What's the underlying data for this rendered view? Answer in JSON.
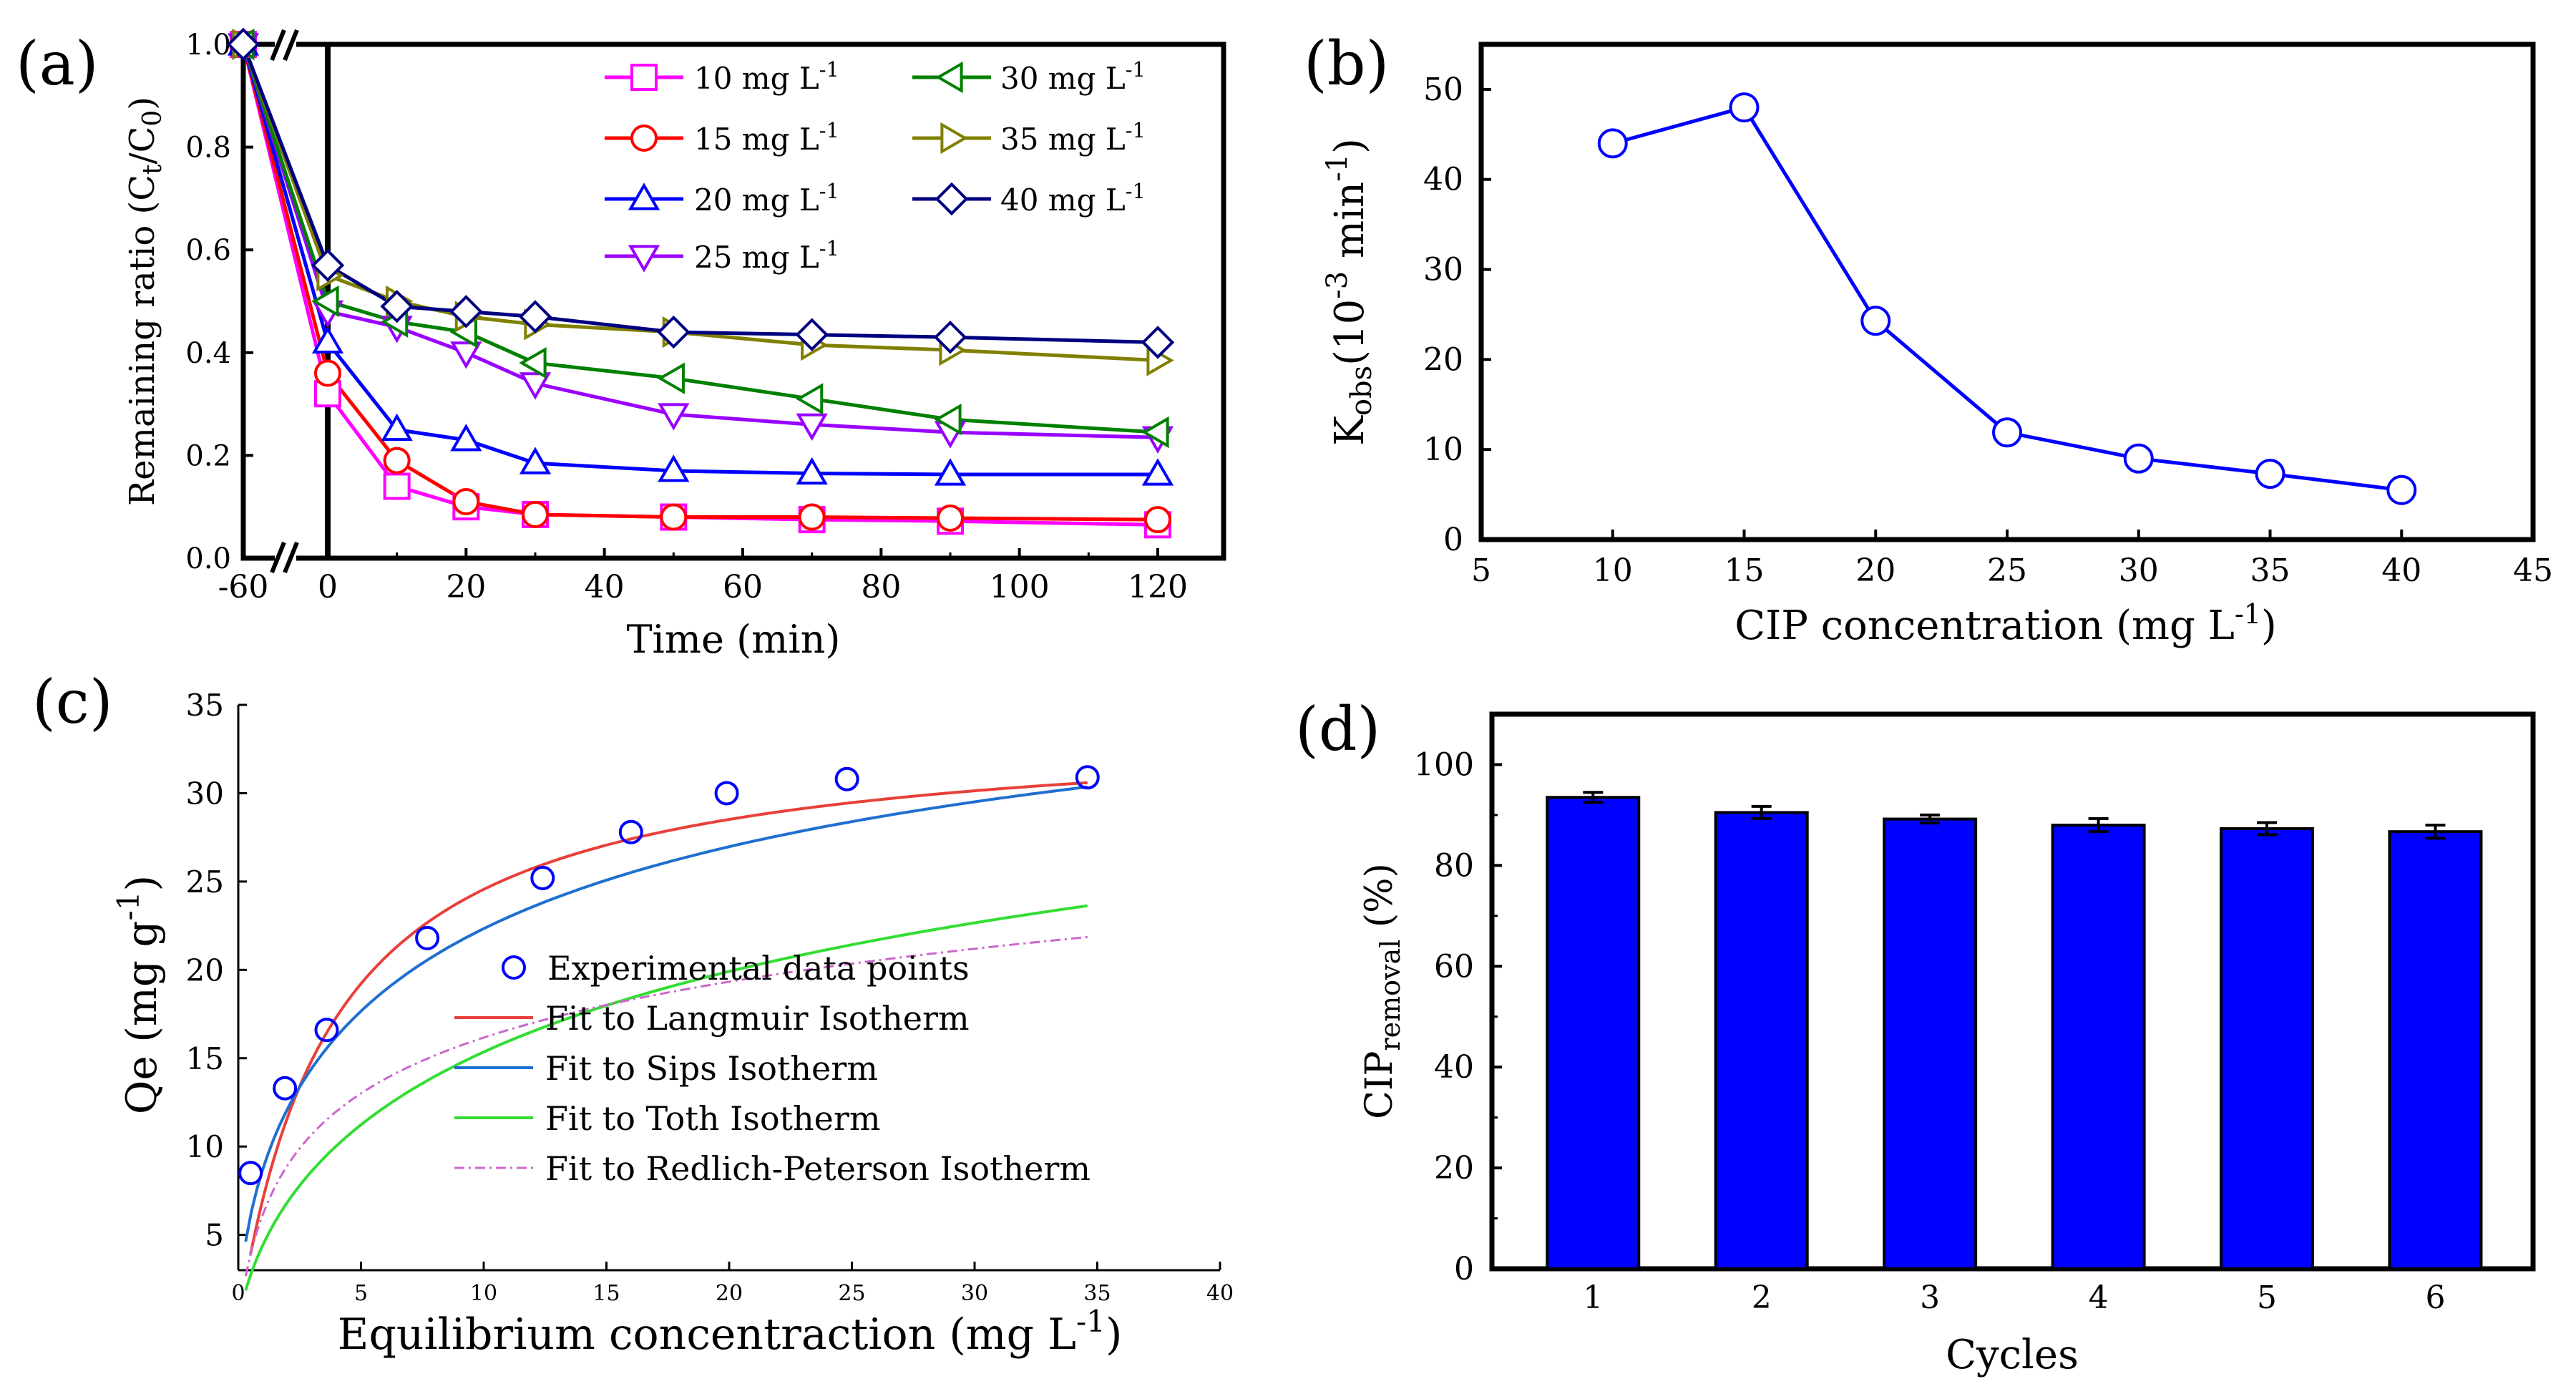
{
  "chart_data": [
    {
      "panel_label": "(a)",
      "type": "line",
      "xlabel": "Time (min)",
      "ylabel": {
        "prefix": "Remaining ratio (C",
        "sub1": "t",
        "mid": "/C",
        "sub2": "0",
        "suffix": ")"
      },
      "xlim": [
        -60,
        120
      ],
      "ylim": [
        0.0,
        1.0
      ],
      "x_break": true,
      "x_ticks": [
        -60,
        0,
        20,
        40,
        60,
        80,
        100,
        120
      ],
      "x_tick_labels": [
        "-60",
        "0",
        "20",
        "40",
        "60",
        "80",
        "100",
        "120"
      ],
      "y_ticks": [
        0.0,
        0.2,
        0.4,
        0.6,
        0.8,
        1.0
      ],
      "y_tick_labels": [
        "0.0",
        "0.2",
        "0.4",
        "0.6",
        "0.8",
        "1.0"
      ],
      "x": [
        -60,
        0,
        10,
        20,
        30,
        50,
        70,
        90,
        120
      ],
      "series": [
        {
          "name": "10 mg L",
          "unit_sup": "-1",
          "marker": "square",
          "color": "#ff00ff",
          "values": [
            1.0,
            0.32,
            0.14,
            0.1,
            0.085,
            0.08,
            0.075,
            0.072,
            0.065
          ]
        },
        {
          "name": "15 mg L",
          "unit_sup": "-1",
          "marker": "circle",
          "color": "#ff0000",
          "values": [
            1.0,
            0.36,
            0.19,
            0.11,
            0.085,
            0.08,
            0.08,
            0.078,
            0.075
          ]
        },
        {
          "name": "20 mg L",
          "unit_sup": "-1",
          "marker": "triangle-up",
          "color": "#0000ff",
          "values": [
            1.0,
            0.42,
            0.25,
            0.23,
            0.185,
            0.17,
            0.165,
            0.163,
            0.163
          ]
        },
        {
          "name": "25 mg L",
          "unit_sup": "-1",
          "marker": "triangle-down",
          "color": "#9900ff",
          "values": [
            1.0,
            0.48,
            0.45,
            0.4,
            0.34,
            0.28,
            0.26,
            0.245,
            0.235
          ]
        },
        {
          "name": "30 mg L",
          "unit_sup": "-1",
          "marker": "triangle-left",
          "color": "#008000",
          "values": [
            1.0,
            0.5,
            0.46,
            0.44,
            0.38,
            0.35,
            0.31,
            0.27,
            0.245
          ]
        },
        {
          "name": "35 mg L",
          "unit_sup": "-1",
          "marker": "triangle-right",
          "color": "#808000",
          "values": [
            1.0,
            0.55,
            0.5,
            0.47,
            0.455,
            0.44,
            0.415,
            0.405,
            0.385
          ]
        },
        {
          "name": "40 mg L",
          "unit_sup": "-1",
          "marker": "diamond",
          "color": "#000080",
          "values": [
            1.0,
            0.57,
            0.49,
            0.48,
            0.47,
            0.44,
            0.435,
            0.43,
            0.42
          ]
        }
      ]
    },
    {
      "panel_label": "(b)",
      "type": "line",
      "xlabel": {
        "text": "CIP concentration (mg L",
        "sup": "-1",
        "suffix": ")"
      },
      "ylabel": {
        "text": "K",
        "sub": "obs",
        "mid": "(10",
        "sup1": "-3",
        "mid2": " min",
        "sup2": "-1",
        "suffix": ")"
      },
      "xlim": [
        5,
        45
      ],
      "ylim": [
        0,
        55
      ],
      "x_ticks": [
        5,
        10,
        15,
        20,
        25,
        30,
        35,
        40,
        45
      ],
      "x_tick_labels": [
        "5",
        "10",
        "15",
        "20",
        "25",
        "30",
        "35",
        "40",
        "45"
      ],
      "y_ticks": [
        0,
        10,
        20,
        30,
        40,
        50
      ],
      "y_tick_labels": [
        "0",
        "10",
        "20",
        "30",
        "40",
        "50"
      ],
      "color": "#0000ff",
      "x": [
        10,
        15,
        20,
        25,
        30,
        35,
        40
      ],
      "values": [
        44.0,
        48.0,
        24.3,
        11.9,
        9.0,
        7.3,
        5.5
      ]
    },
    {
      "panel_label": "(c)",
      "type": "scatter",
      "xlabel": {
        "text": "Equilibrium concentraction (mg L",
        "sup": "-1",
        "suffix": ")"
      },
      "ylabel": {
        "text": "Qe (mg g",
        "sup": "-1",
        "suffix": ")"
      },
      "xlim": [
        0,
        40
      ],
      "ylim": [
        3,
        35
      ],
      "x_ticks": [
        0,
        5,
        10,
        15,
        20,
        25,
        30,
        35,
        40
      ],
      "x_tick_labels": [
        "0",
        "5",
        "10",
        "15",
        "20",
        "25",
        "30",
        "35",
        "40"
      ],
      "y_ticks": [
        5,
        10,
        15,
        20,
        25,
        30,
        35
      ],
      "y_tick_labels": [
        "5",
        "10",
        "15",
        "20",
        "25",
        "30",
        "35"
      ],
      "points": {
        "name": "Experimental data points",
        "color": "#0000ff",
        "x": [
          0.5,
          1.9,
          3.6,
          7.7,
          12.4,
          16.0,
          19.9,
          24.8,
          34.6
        ],
        "y": [
          8.5,
          13.3,
          16.6,
          21.8,
          25.2,
          27.8,
          30.0,
          30.8,
          30.9
        ]
      },
      "fits": [
        {
          "name": "Fit to Langmuir Isotherm",
          "model": "langmuir",
          "color": "#e8403a",
          "params": {
            "qm": 34.0,
            "kl": 0.26
          },
          "x_range": [
            0.5,
            34.6
          ]
        },
        {
          "name": "Fit to Sips Isotherm",
          "model": "sips",
          "color": "#1f6fd0",
          "params": {
            "qm": 44.0,
            "ks": 0.105,
            "n": 0.62
          },
          "x_range": [
            0.3,
            34.6
          ]
        },
        {
          "name": "Fit to Toth Isotherm",
          "model": "toth",
          "color": "#33dd33",
          "params": {
            "qm": 50.0,
            "b": 0.22,
            "t": 0.45
          },
          "x_range": [
            0.3,
            34.6
          ]
        },
        {
          "name": "Fit to Redlich-Peterson Isotherm",
          "model": "redlich-peterson",
          "color": "#cc66cc",
          "params": {
            "kr": 12.0,
            "ar": 0.95,
            "beta": 0.83
          },
          "x_range": [
            0.3,
            34.6
          ]
        }
      ]
    },
    {
      "panel_label": "(d)",
      "type": "bar",
      "xlabel": "Cycles",
      "ylabel": {
        "text": "CIP",
        "sub": "removal",
        "suffix": " (%)"
      },
      "ylim": [
        0,
        110
      ],
      "y_ticks": [
        0,
        20,
        40,
        60,
        80,
        100
      ],
      "y_tick_labels": [
        "0",
        "20",
        "40",
        "60",
        "80",
        "100"
      ],
      "categories": [
        "1",
        "2",
        "3",
        "4",
        "5",
        "6"
      ],
      "values": [
        93.5,
        90.5,
        89.2,
        88.0,
        87.3,
        86.7
      ],
      "errors": [
        1.0,
        1.2,
        0.8,
        1.3,
        1.2,
        1.3
      ],
      "color": "#0000ff"
    }
  ]
}
